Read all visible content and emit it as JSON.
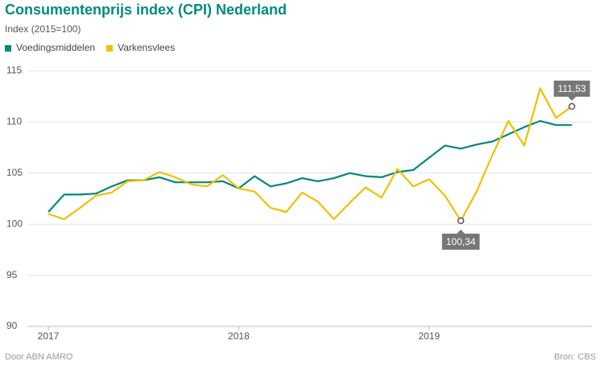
{
  "chart_data": {
    "type": "line",
    "title": "Consumentenprijs index (CPI) Nederland",
    "subtitle": "Index (2015=100)",
    "credit": "Door ABN AMRO",
    "source": "Bron: CBS",
    "categories": [
      "2017",
      null,
      null,
      null,
      null,
      null,
      null,
      null,
      null,
      null,
      null,
      null,
      "2018",
      null,
      null,
      null,
      null,
      null,
      null,
      null,
      null,
      null,
      null,
      null,
      "2019",
      null,
      null,
      null,
      null,
      null,
      null,
      null,
      null,
      null
    ],
    "series": [
      {
        "name": "Voedingsmiddelen",
        "color": "#00897b",
        "values": [
          101.2,
          102.9,
          102.9,
          103.0,
          103.7,
          104.3,
          104.3,
          104.6,
          104.1,
          104.1,
          104.1,
          104.2,
          103.5,
          104.7,
          103.7,
          104.0,
          104.5,
          104.2,
          104.5,
          105.0,
          104.7,
          104.6,
          105.1,
          105.3,
          106.5,
          107.7,
          107.4,
          107.8,
          108.1,
          108.8,
          109.5,
          110.1,
          109.7,
          109.7
        ]
      },
      {
        "name": "Varkensvlees",
        "color": "#f0c000",
        "values": [
          101.0,
          100.5,
          101.6,
          102.8,
          103.1,
          104.2,
          104.3,
          105.1,
          104.6,
          103.9,
          103.7,
          104.8,
          103.5,
          103.2,
          101.6,
          101.2,
          103.1,
          102.2,
          100.5,
          102.1,
          103.6,
          102.6,
          105.4,
          103.7,
          104.4,
          102.8,
          100.34,
          103.2,
          106.8,
          110.1,
          107.7,
          113.3,
          110.4,
          111.53
        ],
        "value_labels": [
          null,
          null,
          null,
          null,
          null,
          null,
          null,
          null,
          null,
          null,
          null,
          null,
          null,
          null,
          null,
          null,
          null,
          null,
          null,
          null,
          null,
          null,
          null,
          null,
          null,
          null,
          "100,34",
          null,
          null,
          null,
          null,
          null,
          null,
          "111,53"
        ]
      }
    ],
    "ylim": [
      90,
      115
    ],
    "yticks": [
      90,
      95,
      100,
      105,
      110,
      115
    ],
    "grid": true,
    "legend": "top-left"
  }
}
